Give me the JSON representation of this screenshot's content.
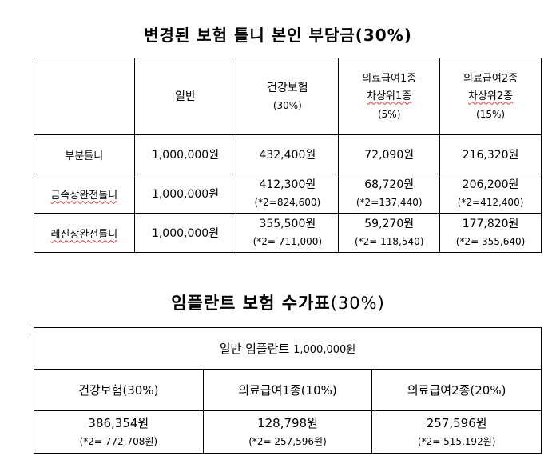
{
  "title1": "변경된 보험 틀니 본인 부담금(30%)",
  "table1": {
    "headers": [
      {
        "lines": [
          "일반"
        ]
      },
      {
        "lines": [
          "건강보험",
          "(30%)"
        ]
      },
      {
        "lines": [
          "의료급여1종",
          "차상위1종",
          "(5%)"
        ]
      },
      {
        "lines": [
          "의료급여2종",
          "차상위2종",
          "(15%)"
        ]
      }
    ],
    "rows": [
      {
        "name": "부분틀니",
        "general": "1,000,000원",
        "health": [
          "432,400원"
        ],
        "med1": [
          "72,090원"
        ],
        "med2": [
          "216,320원"
        ]
      },
      {
        "name": "금속상완전틀니",
        "general": "1,000,000원",
        "health": [
          "412,300원",
          "(*2=824,600)"
        ],
        "med1": [
          "68,720원",
          "(*2=137,440)"
        ],
        "med2": [
          "206,200원",
          "(*2=412,400)"
        ]
      },
      {
        "name": "레진상완전틀니",
        "general": "1,000,000원",
        "health": [
          "355,500원",
          "(*2=  711,000)"
        ],
        "med1": [
          "59,270원",
          "(*2=  118,540)"
        ],
        "med2": [
          "177,820원",
          "(*2=  355,640)"
        ]
      }
    ]
  },
  "title2_kor": "임플란트 보험 수가표",
  "title2_pct": "(30%)",
  "table2": {
    "top_label": "일반 임플란트",
    "top_value": "1,000,000원",
    "cols": [
      {
        "label": "건강보험(30%)",
        "value": "386,354원",
        "double": "(*2=  772,708원)"
      },
      {
        "label": "의료급여1종(10%)",
        "value": "128,798원",
        "double": "(*2=  257,596원)"
      },
      {
        "label": "의료급여2종(20%)",
        "value": "257,596원",
        "double": "(*2=  515,192원)"
      }
    ]
  }
}
